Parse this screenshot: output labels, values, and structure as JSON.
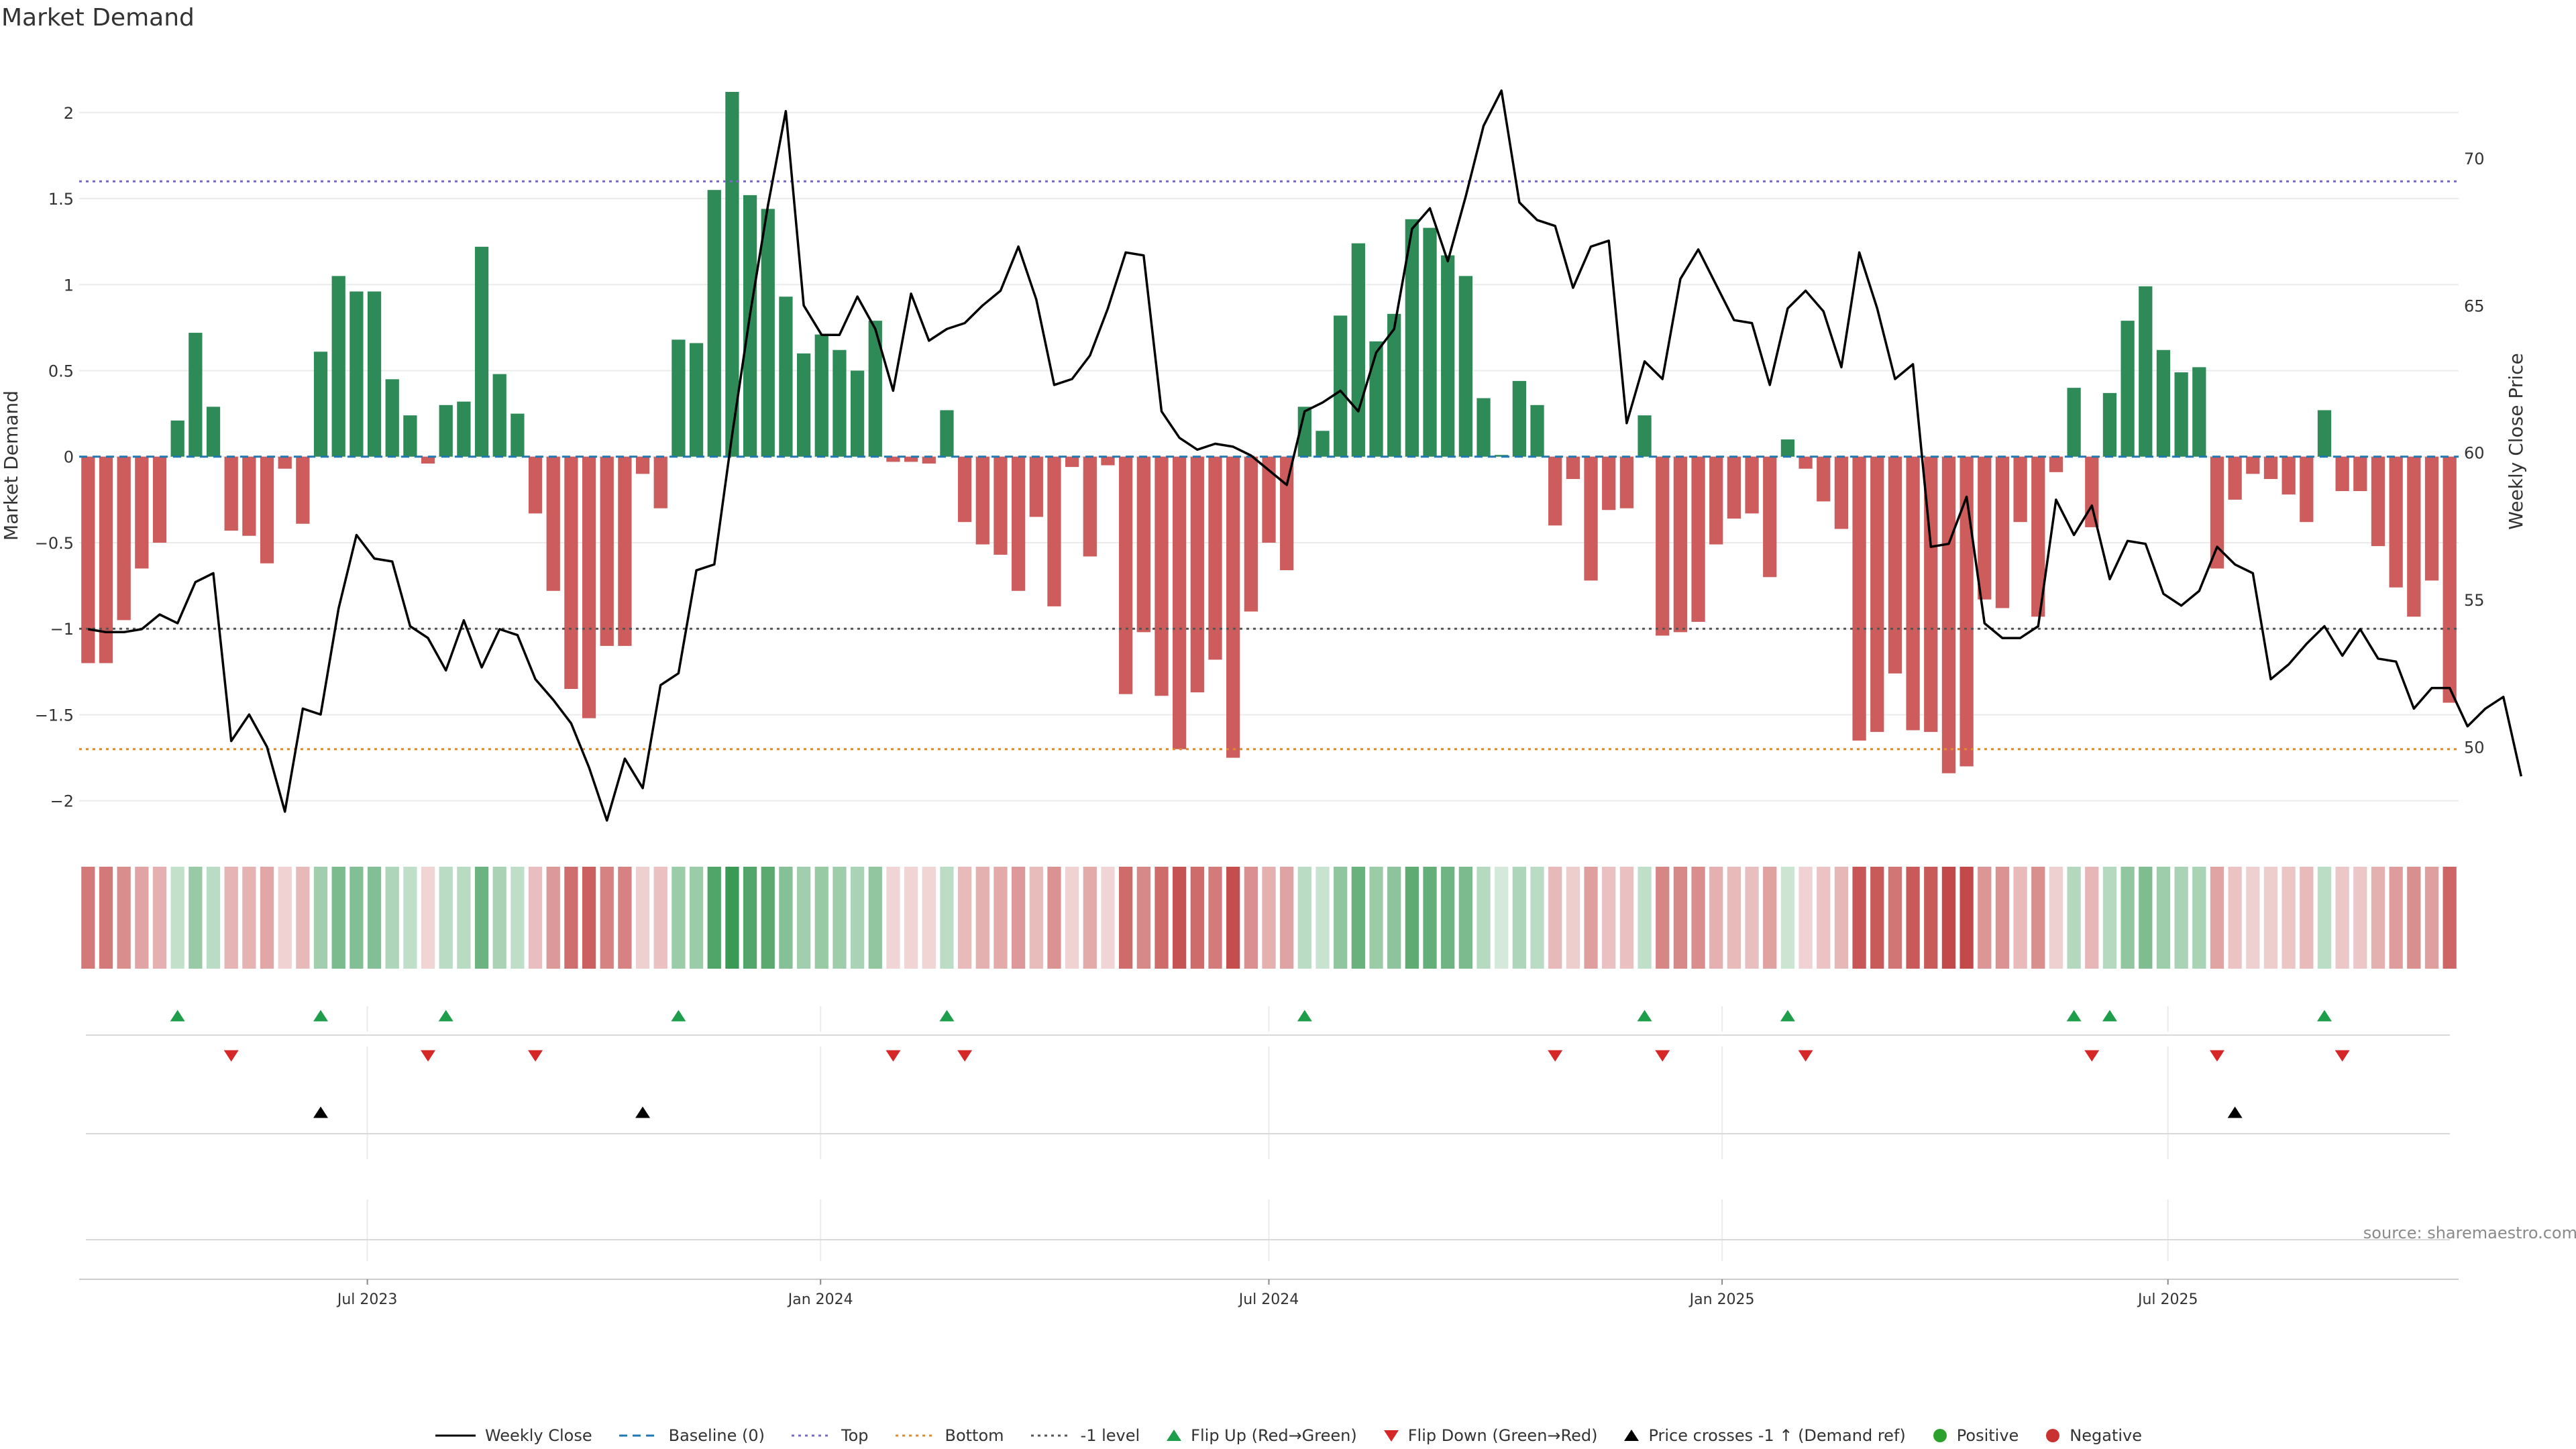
{
  "chart_data": {
    "type": "bar",
    "title": "Market Demand",
    "ylabel": "Market Demand",
    "y2label": "Weekly Close Price",
    "source": "source: sharemaestro.com",
    "ylim": [
      -2.2,
      2.35
    ],
    "y_ticks": [
      2,
      1.5,
      1,
      0.5,
      0,
      -0.5,
      -1,
      -1.5,
      -2
    ],
    "y_tick_labels": [
      "2",
      "1.5",
      "1",
      "0.5",
      "0",
      "−0.5",
      "−1",
      "−1.5",
      "−2"
    ],
    "y2lim": [
      47.0,
      73.6
    ],
    "y2_ticks": [
      50,
      55,
      60,
      65,
      70
    ],
    "x_start": "2023-03-06",
    "x_end": "2025-10-27",
    "x_ticks": [
      {
        "date": "2023-07-01",
        "label": "Jul 2023"
      },
      {
        "date": "2024-01-01",
        "label": "Jan 2024"
      },
      {
        "date": "2024-07-01",
        "label": "Jul 2024"
      },
      {
        "date": "2025-01-01",
        "label": "Jan 2025"
      },
      {
        "date": "2025-07-01",
        "label": "Jul 2025"
      }
    ],
    "reference_lines": [
      {
        "name": "Baseline (0)",
        "value": 0,
        "color": "#1f77b4",
        "dash": "dashed"
      },
      {
        "name": "Top",
        "value": 1.6,
        "color": "#7b68c8",
        "dash": "dotted"
      },
      {
        "name": "Bottom",
        "value": -1.7,
        "color": "#e08a2c",
        "dash": "dotted"
      },
      {
        "name": "-1 level",
        "value": -1.0,
        "color": "#555555",
        "dash": "dotted"
      }
    ],
    "series": [
      {
        "name": "Market Demand",
        "kind": "bar",
        "values": [
          -1.2,
          -1.2,
          -0.95,
          -0.65,
          -0.5,
          0.21,
          0.72,
          0.29,
          -0.43,
          -0.46,
          -0.62,
          -0.07,
          -0.39,
          0.61,
          1.05,
          0.96,
          0.96,
          0.45,
          0.24,
          -0.04,
          0.3,
          0.32,
          1.22,
          0.48,
          0.25,
          -0.33,
          -0.78,
          -1.35,
          -1.52,
          -1.1,
          -1.1,
          -0.1,
          -0.3,
          0.68,
          0.66,
          1.55,
          2.12,
          1.52,
          1.44,
          0.93,
          0.6,
          0.71,
          0.62,
          0.5,
          0.79,
          -0.03,
          -0.03,
          -0.04,
          0.27,
          -0.38,
          -0.51,
          -0.57,
          -0.78,
          -0.35,
          -0.87,
          -0.06,
          -0.58,
          -0.05,
          -1.38,
          -1.02,
          -1.39,
          -1.7,
          -1.37,
          -1.18,
          -1.75,
          -0.9,
          -0.5,
          -0.66,
          0.29,
          0.15,
          0.82,
          1.24,
          0.67,
          0.83,
          1.38,
          1.33,
          1.17,
          1.05,
          0.34,
          0.01,
          0.44,
          0.3,
          -0.4,
          -0.13,
          -0.72,
          -0.31,
          -0.3,
          0.24,
          -1.04,
          -1.02,
          -0.96,
          -0.51,
          -0.36,
          -0.33,
          -0.7,
          0.1,
          -0.07,
          -0.26,
          -0.42,
          -1.65,
          -1.6,
          -1.26,
          -1.59,
          -1.6,
          -1.84,
          -1.8,
          -0.83,
          -0.88,
          -0.38,
          -0.93,
          -0.09,
          0.4,
          -0.41,
          0.37,
          0.79,
          0.99,
          0.62,
          0.49,
          0.52,
          -0.65,
          -0.25,
          -0.1,
          -0.13,
          -0.22,
          -0.38,
          0.27,
          -0.2,
          -0.2,
          -0.52,
          -0.76,
          -0.93,
          -0.72,
          -1.43
        ]
      },
      {
        "name": "Weekly Close",
        "kind": "line",
        "values": [
          54.0,
          53.9,
          53.9,
          54.0,
          54.5,
          54.2,
          55.6,
          55.9,
          50.2,
          51.1,
          50.0,
          47.8,
          51.3,
          51.1,
          54.7,
          57.2,
          56.4,
          56.3,
          54.1,
          53.7,
          52.6,
          54.3,
          52.7,
          54.0,
          53.8,
          52.3,
          51.6,
          50.8,
          49.3,
          47.5,
          49.6,
          48.6,
          52.1,
          52.5,
          56.0,
          56.2,
          60.6,
          64.7,
          68.4,
          71.6,
          65.0,
          64.0,
          64.0,
          65.3,
          64.2,
          62.1,
          65.4,
          63.8,
          64.2,
          64.4,
          65.0,
          65.5,
          67.0,
          65.2,
          62.3,
          62.5,
          63.3,
          64.9,
          66.8,
          66.7,
          61.4,
          60.5,
          60.1,
          60.3,
          60.2,
          59.9,
          59.4,
          58.9,
          61.4,
          61.7,
          62.1,
          61.4,
          63.4,
          64.2,
          67.6,
          68.3,
          66.5,
          68.7,
          71.1,
          72.3,
          68.5,
          67.9,
          67.7,
          65.6,
          67.0,
          67.2,
          61.0,
          63.1,
          62.5,
          65.9,
          66.9,
          65.7,
          64.5,
          64.4,
          62.3,
          64.9,
          65.5,
          64.8,
          62.9,
          66.8,
          64.9,
          62.5,
          63.0,
          56.8,
          56.9,
          58.5,
          54.2,
          53.7,
          53.7,
          54.1,
          58.4,
          57.2,
          58.2,
          55.7,
          57.0,
          56.9,
          55.2,
          54.8,
          55.3,
          56.8,
          56.2,
          55.9,
          52.3,
          52.8,
          53.5,
          54.1,
          53.1,
          54.0,
          53.0,
          52.9,
          51.3,
          52.0,
          52.0,
          50.7,
          51.3,
          51.7,
          49.0
        ]
      }
    ],
    "heat_strip": {
      "name": "Demand intensity",
      "colors": {
        "positive": "#3a9a55",
        "negative": "#c34a4a"
      }
    },
    "markers": {
      "flip_up": [
        5,
        13,
        20,
        33,
        48,
        68,
        87,
        95,
        111,
        113,
        125
      ],
      "flip_down": [
        8,
        19,
        25,
        45,
        49,
        82,
        88,
        96,
        112,
        119,
        126
      ],
      "price_cross": [
        13,
        31,
        120
      ]
    },
    "legend": [
      {
        "label": "Weekly Close",
        "symbol": "solid-line",
        "color": "#000000"
      },
      {
        "label": "Baseline (0)",
        "symbol": "dashed-line",
        "color": "#1f77b4"
      },
      {
        "label": "Top",
        "symbol": "dotted-line",
        "color": "#7b68c8"
      },
      {
        "label": "Bottom",
        "symbol": "dotted-line",
        "color": "#e08a2c"
      },
      {
        "label": "-1 level",
        "symbol": "dotted-line",
        "color": "#555555"
      },
      {
        "label": "Flip Up (Red→Green)",
        "symbol": "triangle-up",
        "color": "#1e9e4a"
      },
      {
        "label": "Flip Down (Green→Red)",
        "symbol": "triangle-down",
        "color": "#d62728"
      },
      {
        "label": "Price crosses -1 ↑ (Demand ref)",
        "symbol": "triangle-up",
        "color": "#000000"
      },
      {
        "label": "Positive",
        "symbol": "circle",
        "color": "#2ca02c"
      },
      {
        "label": "Negative",
        "symbol": "circle",
        "color": "#c83232"
      }
    ],
    "colors": {
      "bar_positive": "#2e8b57",
      "bar_negative": "#cd5c5c",
      "price_line": "#000000"
    }
  }
}
